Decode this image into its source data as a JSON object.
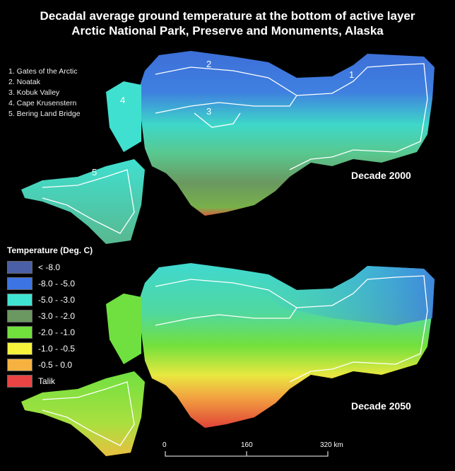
{
  "title": {
    "line1": "Decadal average ground temperature at the bottom of active layer",
    "line2": "Arctic National Park, Preserve and Monuments, Alaska"
  },
  "parks": [
    "1. Gates of the Arctic",
    "2. Noatak",
    "3. Kobuk Valley",
    "4. Cape Krusenstern",
    "5. Bering Land Bridge"
  ],
  "map_labels": [
    "1",
    "2",
    "3",
    "4",
    "5"
  ],
  "panels": [
    {
      "label": "Decade 2000"
    },
    {
      "label": "Decade 2050"
    }
  ],
  "legend": {
    "title": "Temperature (Deg. C)",
    "items": [
      {
        "label": "< -8.0",
        "color": "#4a5fa6"
      },
      {
        "label": "-8.0 - -5.0",
        "color": "#3d74e3"
      },
      {
        "label": "-5.0 - -3.0",
        "color": "#40e4d2"
      },
      {
        "label": "-3.0 - -2.0",
        "color": "#6a9860"
      },
      {
        "label": "-2.0 - -1.0",
        "color": "#72e03c"
      },
      {
        "label": "-1.0 - -0.5",
        "color": "#f6f23c"
      },
      {
        "label": "-0.5 - 0.0",
        "color": "#f6b240"
      },
      {
        "label": "Talik",
        "color": "#ea4444"
      }
    ]
  },
  "scale_bar": {
    "ticks": [
      "0",
      "160",
      "320 km"
    ]
  }
}
